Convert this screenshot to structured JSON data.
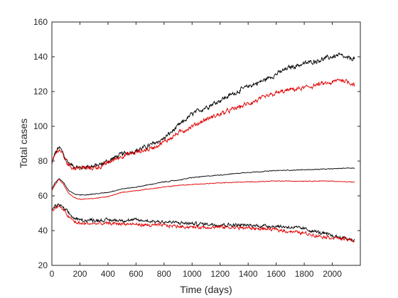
{
  "chart_data": {
    "type": "line",
    "title": "",
    "xlabel": "Time (days)",
    "ylabel": "Total cases",
    "xlim": [
      0,
      2200
    ],
    "ylim": [
      20,
      160
    ],
    "xticks": [
      0,
      200,
      400,
      600,
      800,
      1000,
      1200,
      1400,
      1600,
      1800,
      2000
    ],
    "yticks": [
      20,
      40,
      60,
      80,
      100,
      120,
      140,
      160
    ],
    "grid": false,
    "legend": "none",
    "colors": {
      "black": "#000000",
      "red": "#e00000",
      "axes": "#262626"
    },
    "series": [
      {
        "color": "black",
        "noise": 1.2,
        "x": [
          0,
          20,
          50,
          70,
          100,
          130,
          160,
          200,
          250,
          300,
          350,
          400,
          500,
          600,
          700,
          800,
          900,
          1000,
          1100,
          1200,
          1300,
          1400,
          1500,
          1600,
          1700,
          1800,
          1900,
          2000,
          2050,
          2100,
          2160
        ],
        "y": [
          78,
          84,
          88,
          86,
          81,
          78,
          77,
          76,
          77,
          77,
          78,
          80,
          84,
          86,
          89,
          93,
          100,
          107,
          111,
          115,
          119,
          123,
          126,
          130,
          134,
          136,
          138,
          140,
          141,
          139,
          139
        ]
      },
      {
        "color": "red",
        "noise": 1.2,
        "x": [
          0,
          20,
          50,
          70,
          100,
          130,
          160,
          200,
          250,
          300,
          350,
          400,
          500,
          600,
          700,
          800,
          900,
          1000,
          1100,
          1200,
          1300,
          1400,
          1500,
          1600,
          1700,
          1800,
          1900,
          2000,
          2050,
          2100,
          2160
        ],
        "y": [
          78,
          83,
          87,
          85,
          80,
          77,
          76,
          76,
          76,
          76,
          77,
          79,
          83,
          85,
          87,
          91,
          96,
          100,
          104,
          107,
          110,
          113,
          116,
          119,
          121,
          122,
          124,
          125,
          127,
          126,
          124
        ]
      },
      {
        "color": "black",
        "noise": 0.2,
        "x": [
          0,
          20,
          50,
          80,
          120,
          160,
          200,
          300,
          400,
          500,
          600,
          700,
          800,
          900,
          1000,
          1200,
          1400,
          1600,
          1800,
          2000,
          2100,
          2160
        ],
        "y": [
          64,
          67,
          70,
          68,
          63,
          61,
          60.5,
          61,
          62,
          64,
          65,
          66.5,
          68,
          69,
          70.5,
          72,
          73.5,
          74.5,
          75,
          75.5,
          76,
          76
        ]
      },
      {
        "color": "red",
        "noise": 0.2,
        "x": [
          0,
          20,
          50,
          80,
          120,
          160,
          200,
          300,
          400,
          500,
          600,
          700,
          800,
          900,
          1000,
          1200,
          1400,
          1600,
          1800,
          2000,
          2100,
          2160
        ],
        "y": [
          63,
          66,
          69.5,
          67,
          61.5,
          59,
          58,
          58.5,
          59.5,
          62,
          63,
          64,
          65,
          66,
          66.5,
          67.5,
          68,
          68.5,
          68.5,
          68.5,
          68,
          68
        ]
      },
      {
        "color": "black",
        "noise": 0.9,
        "x": [
          0,
          20,
          50,
          80,
          120,
          160,
          200,
          300,
          400,
          500,
          600,
          700,
          800,
          900,
          1000,
          1200,
          1400,
          1600,
          1700,
          1800,
          1900,
          2000,
          2100,
          2160
        ],
        "y": [
          52,
          54,
          55,
          53,
          50,
          47,
          46,
          46,
          46,
          46,
          46,
          45.5,
          45,
          44.5,
          44,
          43.5,
          43,
          42.5,
          42,
          41,
          39,
          37,
          35.5,
          34.5
        ]
      },
      {
        "color": "red",
        "noise": 0.9,
        "x": [
          0,
          20,
          50,
          80,
          120,
          160,
          200,
          300,
          400,
          500,
          600,
          700,
          800,
          900,
          1000,
          1200,
          1400,
          1600,
          1700,
          1800,
          1900,
          2000,
          2100,
          2160
        ],
        "y": [
          51,
          53,
          54,
          52,
          48,
          45,
          44,
          44,
          44,
          44,
          43.5,
          43,
          43,
          42.5,
          42,
          42,
          41.5,
          40.5,
          39.5,
          38.5,
          37,
          36,
          35,
          34
        ]
      }
    ]
  }
}
